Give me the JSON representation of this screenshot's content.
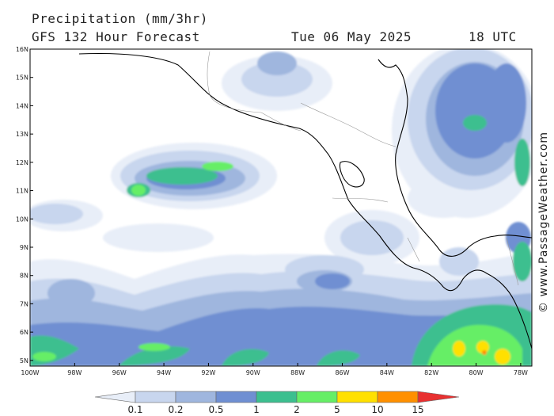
{
  "header": {
    "title": "Precipitation (mm/3hr)",
    "subtitle": "GFS 132 Hour Forecast",
    "date": "Tue 06 May 2025",
    "time": "18 UTC"
  },
  "credit": "© www.PassageWeather.com",
  "map": {
    "lat_range": [
      4.8,
      16.0
    ],
    "lon_range": [
      -100,
      -77.5
    ],
    "lat_ticks": [
      "16N",
      "15N",
      "14N",
      "13N",
      "12N",
      "11N",
      "10N",
      "9N",
      "8N",
      "7N",
      "6N",
      "5N"
    ],
    "lon_ticks": [
      "100W",
      "98W",
      "96W",
      "94W",
      "92W",
      "90W",
      "88W",
      "86W",
      "84W",
      "82W",
      "80W",
      "78W"
    ]
  },
  "legend": {
    "labels": [
      "0.1",
      "0.2",
      "0.5",
      "1",
      "2",
      "5",
      "10",
      "15"
    ],
    "colors": [
      "#e8eef8",
      "#c8d6ee",
      "#9fb6de",
      "#6f8fd2",
      "#3cbf8f",
      "#66ee66",
      "#ffe000",
      "#ff9000",
      "#e83030"
    ]
  }
}
